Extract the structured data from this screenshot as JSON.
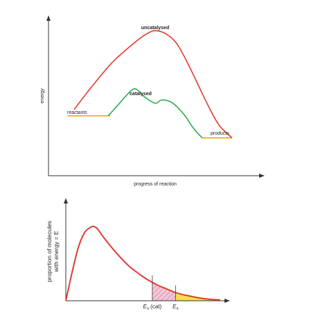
{
  "chart_data": [
    {
      "type": "line",
      "ylabel": "energy",
      "xlabel": "progress of reaction",
      "grid": false,
      "x_range": [
        0,
        100
      ],
      "y_range": [
        0,
        100
      ],
      "levels": {
        "reactants": {
          "label": "reactants",
          "value": 38
        },
        "products": {
          "label": "products",
          "value": 24
        }
      },
      "series": [
        {
          "name": "uncatalysed",
          "color": "#e03a2f",
          "x": [
            12,
            20,
            30,
            40,
            46,
            50,
            55,
            60,
            65,
            70,
            75,
            80,
            86
          ],
          "y": [
            42,
            56,
            72,
            84,
            90,
            92,
            90,
            84,
            72,
            58,
            44,
            32,
            24
          ]
        },
        {
          "name": "catalysed",
          "color": "#2aab4a",
          "x": [
            28,
            32,
            38,
            41,
            45,
            50,
            53,
            57,
            60,
            64,
            68,
            72
          ],
          "y": [
            38,
            44,
            53,
            55,
            50,
            46,
            48,
            47,
            44,
            38,
            30,
            24
          ]
        }
      ],
      "level_color": "#e3a21a"
    },
    {
      "type": "area",
      "ylabel_line1": "proportion of molecules",
      "ylabel_line2": "with energy = E",
      "x_range": [
        0,
        100
      ],
      "y_range": [
        0,
        100
      ],
      "curve_color": "#e03a2f",
      "distribution": {
        "x": [
          0,
          4,
          8,
          12,
          16,
          18,
          20,
          22,
          25,
          30,
          35,
          40,
          45,
          50,
          55,
          60,
          65,
          70,
          75,
          80,
          85,
          90,
          95,
          100
        ],
        "y": [
          0,
          35,
          66,
          85,
          92,
          93,
          91,
          86,
          78,
          66,
          55,
          45,
          37,
          30,
          24,
          19,
          15,
          11,
          8,
          6,
          4,
          2.5,
          1.5,
          1
        ]
      },
      "markers": [
        {
          "label_main": "E",
          "label_sub": "a",
          "label_suffix": " (cat)",
          "x": 56,
          "fill": "#f2b6c8"
        },
        {
          "label_main": "E",
          "label_sub": "a",
          "label_suffix": "",
          "x": 71,
          "fill": "#f5e04a"
        }
      ]
    }
  ]
}
